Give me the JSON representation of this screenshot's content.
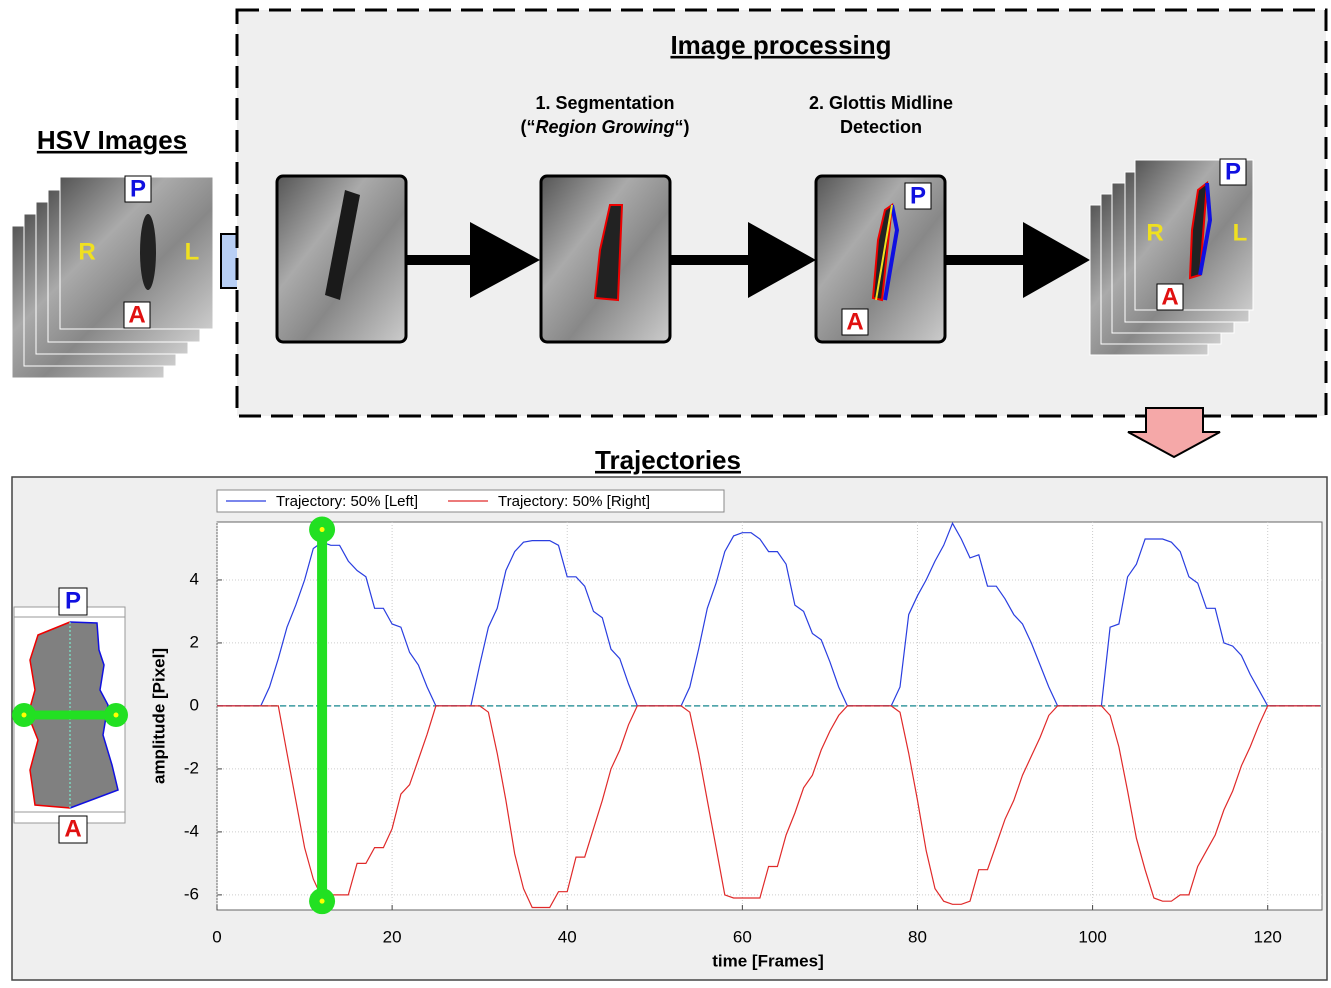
{
  "hsv": {
    "title": "HSV Images",
    "labels": {
      "p": "P",
      "r": "R",
      "l": "L",
      "a": "A"
    }
  },
  "processing": {
    "title": "Image processing",
    "steps": [
      {
        "lines": [
          "1. Segmentation"
        ],
        "paren_open": "(“",
        "italic": "Region Growing",
        "paren_close": "“)"
      },
      {
        "lines": [
          "2. Glottis Midline",
          "Detection"
        ],
        "labels": {
          "p": "P",
          "a": "A"
        }
      }
    ],
    "result_labels": {
      "p": "P",
      "r": "R",
      "l": "L",
      "a": "A"
    }
  },
  "inset_labels": {
    "p": "P",
    "a": "A"
  },
  "chart_data": {
    "type": "line",
    "title": "Trajectories",
    "xlabel": "time [Frames]",
    "ylabel": "amplitude [Pixel]",
    "xlim": [
      0,
      126.2
    ],
    "ylim": [
      -6.48,
      5.84
    ],
    "xticks": [
      0,
      20,
      40,
      60,
      80,
      100,
      120
    ],
    "yticks": [
      -6,
      -4,
      -2,
      0,
      2,
      4
    ],
    "grid": true,
    "legend": "top-left",
    "highlight_x": 12,
    "highlight_y": [
      5.6,
      -6.2
    ],
    "series": [
      {
        "name": "Trajectory: 50% [Left]",
        "color": "#2a3ee0",
        "x": [
          0,
          5,
          6,
          7,
          8,
          9,
          10,
          11,
          12,
          13,
          14,
          15,
          16,
          17,
          18,
          19,
          20,
          21,
          22,
          23,
          24,
          25,
          29,
          30,
          31,
          32,
          33,
          34,
          35,
          36,
          37,
          38,
          39,
          40,
          41,
          42,
          43,
          44,
          45,
          46,
          47,
          48,
          53,
          54,
          55,
          56,
          57,
          58,
          59,
          60,
          61,
          62,
          63,
          64,
          65,
          66,
          67,
          68,
          69,
          70,
          71,
          72,
          77,
          78,
          79,
          80,
          81,
          82,
          83,
          84,
          85,
          86,
          87,
          88,
          89,
          90,
          91,
          92,
          93,
          94,
          95,
          96,
          101,
          102,
          103,
          104,
          105,
          106,
          107,
          108,
          109,
          110,
          111,
          112,
          113,
          114,
          115,
          116,
          117,
          118,
          119,
          120,
          126
        ],
        "values": [
          0,
          0,
          0.6,
          1.5,
          2.5,
          3.2,
          4,
          5,
          5.2,
          5.1,
          5.1,
          4.6,
          4.3,
          4.1,
          3.1,
          3.1,
          2.6,
          2.5,
          1.7,
          1.3,
          0.6,
          0,
          0,
          1.3,
          2.5,
          3.1,
          4.3,
          4.9,
          5.2,
          5.25,
          5.25,
          5.25,
          5.1,
          4.1,
          4.1,
          3.8,
          3.0,
          2.8,
          1.8,
          1.5,
          0.7,
          0,
          0,
          0.6,
          1.8,
          3.1,
          3.9,
          4.9,
          5.4,
          5.5,
          5.5,
          5.3,
          4.9,
          4.9,
          4.5,
          3.2,
          3.0,
          2.3,
          2.1,
          1.4,
          0.6,
          0,
          0,
          0.6,
          2.9,
          3.5,
          4.0,
          4.6,
          5.1,
          5.8,
          5.3,
          4.7,
          4.8,
          3.8,
          3.8,
          3.4,
          2.9,
          2.6,
          2.0,
          1.3,
          0.6,
          0,
          0,
          2.5,
          2.6,
          4.1,
          4.5,
          5.3,
          5.3,
          5.3,
          5.2,
          4.9,
          4.1,
          3.9,
          3.1,
          3.1,
          2.0,
          1.9,
          1.6,
          1.0,
          0.5,
          0,
          0
        ]
      },
      {
        "name": "Trajectory: 50% [Right]",
        "color": "#e02a2a",
        "x": [
          0,
          7,
          8,
          9,
          10,
          11,
          12,
          13,
          14,
          15,
          16,
          17,
          18,
          19,
          20,
          21,
          22,
          23,
          24,
          25,
          30,
          31,
          32,
          33,
          34,
          35,
          36,
          37,
          38,
          39,
          40,
          41,
          42,
          43,
          44,
          45,
          46,
          47,
          48,
          53,
          54,
          55,
          56,
          57,
          58,
          59,
          60,
          61,
          62,
          63,
          64,
          65,
          66,
          67,
          68,
          69,
          70,
          71,
          72,
          77,
          78,
          79,
          80,
          81,
          82,
          83,
          84,
          85,
          86,
          87,
          88,
          89,
          90,
          91,
          92,
          93,
          94,
          95,
          96,
          101,
          102,
          103,
          104,
          105,
          106,
          107,
          108,
          109,
          110,
          111,
          112,
          113,
          114,
          115,
          116,
          117,
          118,
          119,
          120,
          126
        ],
        "values": [
          0,
          0,
          -1.5,
          -3,
          -4.5,
          -5.5,
          -6.1,
          -6.0,
          -6.0,
          -6.0,
          -5.0,
          -5.0,
          -4.5,
          -4.5,
          -3.9,
          -2.8,
          -2.5,
          -1.7,
          -0.9,
          0,
          0,
          -0.2,
          -1.5,
          -3,
          -4.7,
          -5.8,
          -6.4,
          -6.4,
          -6.4,
          -5.9,
          -5.9,
          -4.8,
          -4.8,
          -3.9,
          -3.0,
          -2.0,
          -1.4,
          -0.6,
          0,
          0,
          -0.2,
          -1.5,
          -3,
          -4.5,
          -6.0,
          -6.1,
          -6.1,
          -6.1,
          -6.1,
          -5.1,
          -5.1,
          -4.1,
          -3.4,
          -2.6,
          -2.2,
          -1.4,
          -0.8,
          -0.3,
          0,
          0,
          -0.2,
          -1.5,
          -3.0,
          -4.6,
          -5.8,
          -6.2,
          -6.3,
          -6.3,
          -6.2,
          -5.2,
          -5.2,
          -4.4,
          -3.6,
          -3.0,
          -2.2,
          -1.6,
          -1.0,
          -0.3,
          0,
          0,
          -0.3,
          -1.3,
          -2.7,
          -4.2,
          -5.2,
          -6.1,
          -6.2,
          -6.2,
          -6.0,
          -6.0,
          -5.1,
          -4.6,
          -4.1,
          -3.3,
          -2.7,
          -1.9,
          -1.3,
          -0.6,
          0,
          0
        ]
      }
    ]
  }
}
